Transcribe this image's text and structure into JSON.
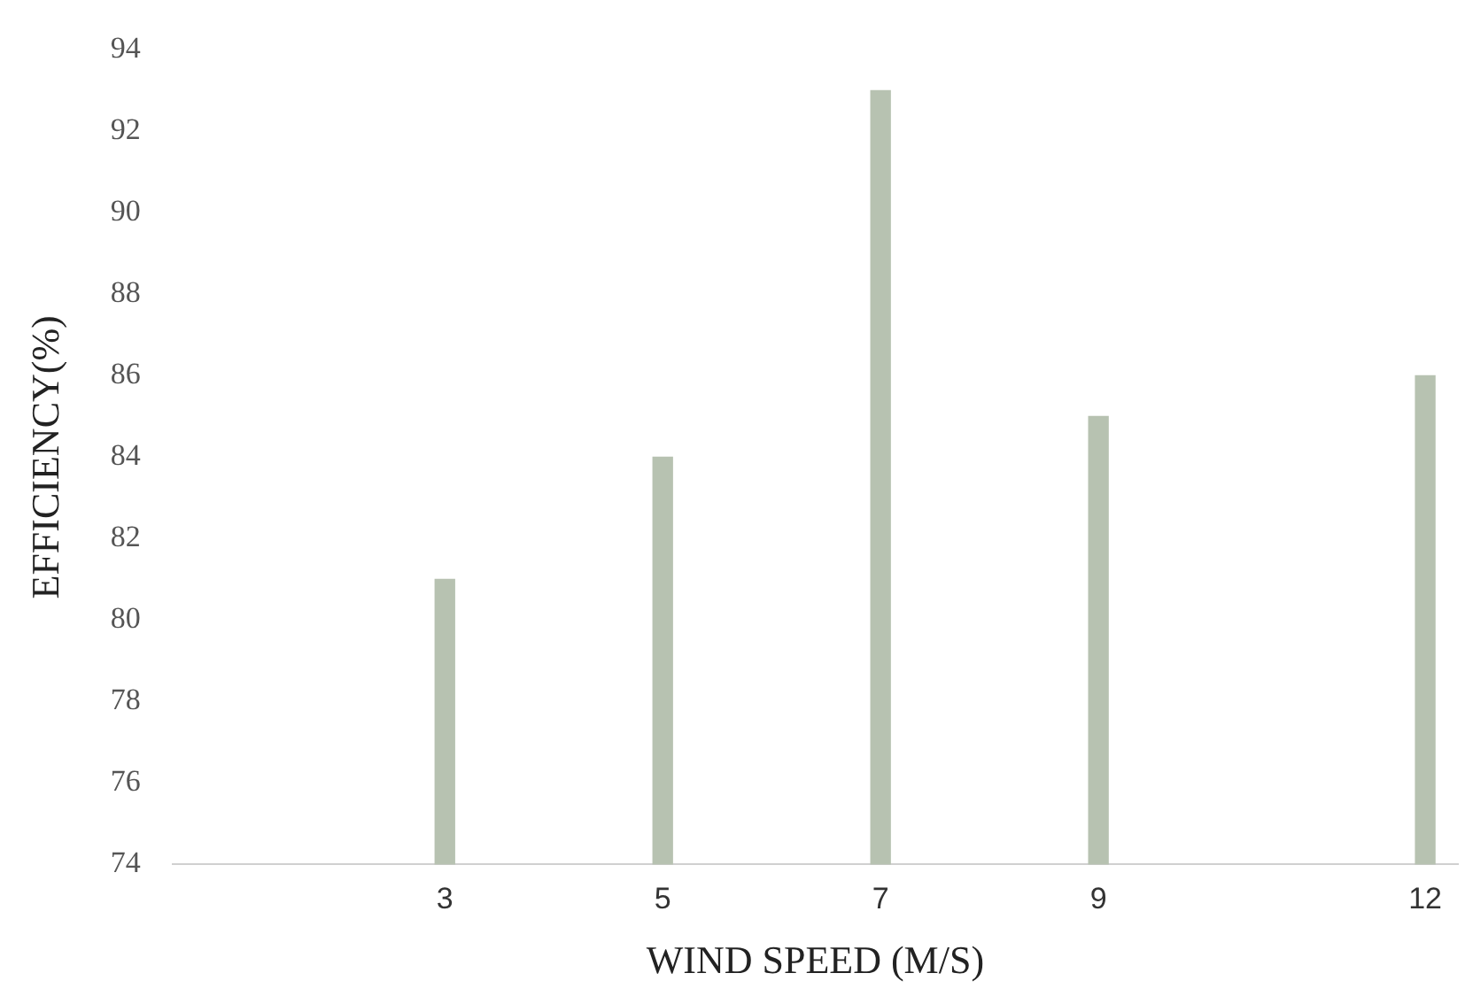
{
  "chart_data": {
    "type": "bar",
    "xlabel": "WIND SPEED (M/S)",
    "ylabel": "EFFICIENCY(%)",
    "x": [
      3,
      5,
      7,
      9,
      12
    ],
    "values": [
      81,
      84,
      93,
      85,
      86
    ],
    "color": "#b7c2b1",
    "xlim": [
      0.5,
      12.3
    ],
    "xticks": [
      3,
      5,
      7,
      9,
      12
    ],
    "ylim": [
      74,
      94
    ],
    "yticks": [
      74,
      76,
      78,
      80,
      82,
      84,
      86,
      88,
      90,
      92,
      94
    ],
    "grid": false,
    "legend": false
  }
}
